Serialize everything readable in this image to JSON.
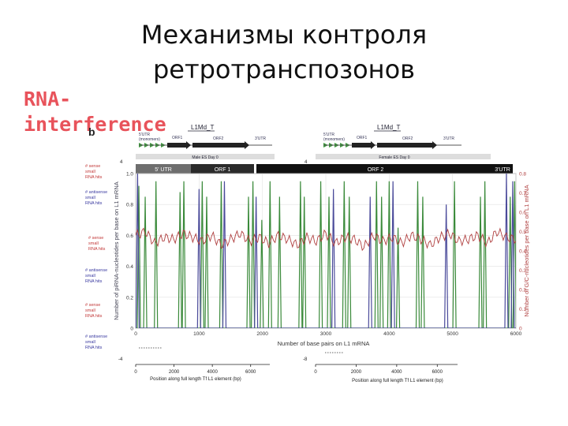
{
  "slide": {
    "title_line1": "Механизмы контроля",
    "title_line2": "ретротранспозонов",
    "side_label_line1": "RNA-",
    "side_label_line2": "interference",
    "panel_letter": "b"
  },
  "male_panel": {
    "element": "L1Md_T",
    "utr5_label": "5'UTR",
    "monomers": "(monomers)",
    "orf1": "ORF1",
    "orf2": "ORF2",
    "utr3": "3'UTR",
    "track_title": "Male ES Day 0",
    "sense_top": "4",
    "sense_bottom": "-4",
    "x_label": "Position along full length Tf L1 element (bp)",
    "x_ticks": [
      "0",
      "2000",
      "4000",
      "6000"
    ]
  },
  "female_panel": {
    "element": "L1Md_T",
    "utr5_label": "5'UTR",
    "monomers": "(monomers)",
    "orf1": "ORF1",
    "orf2": "ORF2",
    "utr3": "3'UTR",
    "track_title": "Female ES Day 0",
    "sense_top": "4",
    "sense_bottom": "-8",
    "x_label": "Position along full length Tf L1 element (bp)",
    "x_ticks": [
      "0",
      "2000",
      "4000",
      "6000"
    ]
  },
  "left_labels": {
    "sense1": [
      "# sense",
      "small",
      "RNA hits"
    ],
    "antisense1": [
      "# antisense",
      "small",
      "RNA hits"
    ],
    "sense2": [
      "# sense",
      "small",
      "RNA hits"
    ],
    "antisense2": [
      "# antisense",
      "small",
      "RNA hits"
    ],
    "sense3": [
      "# sense",
      "small",
      "RNA hits"
    ],
    "antisense3": [
      "# antisense",
      "small",
      "RNA hits"
    ]
  },
  "orf_bar": {
    "utr5": "5' UTR",
    "orf1": "ORF 1",
    "orf2": "ORF 2",
    "utr3": "3'UTR"
  },
  "chart_data": {
    "type": "line",
    "xlabel": "Number of base pairs on L1 mRNA",
    "ylabel": "Number of piRNA-nucleotides per base on L1 mRNA",
    "y2label": "Number of G/C-nucleotides per base on L1 mRNA",
    "xlim": [
      0,
      6000
    ],
    "ylim": [
      0,
      1.0
    ],
    "y2lim": [
      0,
      0.8
    ],
    "x_ticks": [
      0,
      1000,
      2000,
      3000,
      4000,
      5000,
      6000
    ],
    "y_ticks": [
      "0",
      "0.2",
      "0.4",
      "0.6",
      "0.8",
      "1.0"
    ],
    "y2_ticks": [
      "0",
      "0.1",
      "0.2",
      "0.3",
      "0.4",
      "0.5",
      "0.6",
      "0.7",
      "0.8"
    ],
    "grid": true,
    "colors": {
      "pirna1": "#3a8a3a",
      "pirna2": "#4a4a9a",
      "gc": "#b04040"
    },
    "series": [
      {
        "key": "pirna1",
        "peaks_x": [
          50,
          150,
          320,
          700,
          760,
          1050,
          1120,
          1350,
          1780,
          1850,
          1990,
          2120,
          2270,
          2600,
          2660,
          2920,
          3050,
          3290,
          3370,
          3800,
          3880,
          4000,
          4140,
          4450,
          4530,
          5030,
          5440,
          5510,
          5910,
          5980
        ],
        "peaks_y": [
          0.92,
          0.85,
          0.95,
          0.88,
          0.95,
          0.95,
          0.85,
          0.95,
          0.85,
          0.95,
          0.7,
          0.95,
          0.85,
          0.95,
          0.85,
          0.95,
          0.85,
          0.95,
          0.85,
          0.95,
          0.85,
          0.95,
          0.65,
          0.95,
          0.85,
          0.95,
          0.85,
          0.95,
          0.85,
          0.95
        ]
      },
      {
        "key": "pirna2",
        "peaks_x": [
          30,
          1000,
          1400,
          1900,
          3120,
          3700,
          4060,
          4900,
          5850,
          5950
        ],
        "peaks_y": [
          1.0,
          0.9,
          0.95,
          0.85,
          0.9,
          0.85,
          0.95,
          0.8,
          1.0,
          0.95
        ]
      },
      {
        "key": "gc",
        "x": [
          0,
          150,
          300,
          450,
          600,
          750,
          900,
          1050,
          1200,
          1350,
          1500,
          1650,
          1800,
          1950,
          2100,
          2250,
          2400,
          2550,
          2700,
          2850,
          3000,
          3150,
          3300,
          3450,
          3600,
          3750,
          3900,
          4050,
          4200,
          4350,
          4500,
          4650,
          4800,
          4950,
          5100,
          5250,
          5400,
          5550,
          5700,
          5850,
          6000
        ],
        "y": [
          0.48,
          0.5,
          0.44,
          0.47,
          0.46,
          0.49,
          0.47,
          0.45,
          0.48,
          0.43,
          0.46,
          0.49,
          0.45,
          0.47,
          0.44,
          0.48,
          0.46,
          0.43,
          0.47,
          0.45,
          0.49,
          0.44,
          0.47,
          0.46,
          0.42,
          0.48,
          0.45,
          0.47,
          0.44,
          0.48,
          0.46,
          0.43,
          0.47,
          0.49,
          0.45,
          0.46,
          0.48,
          0.44,
          0.5,
          0.47,
          0.46
        ]
      }
    ]
  }
}
